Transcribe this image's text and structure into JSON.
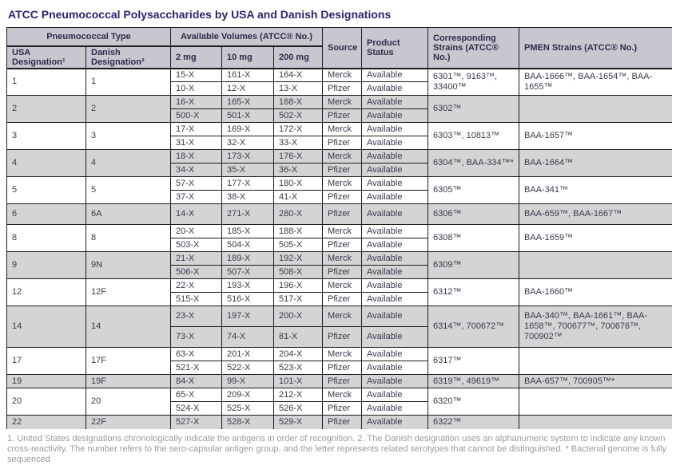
{
  "title": "ATCC Pneumococcal Polysaccharides by USA and Danish Designations",
  "table": {
    "header": {
      "pneumococcal_type": "Pneumococcal Type",
      "usa_designation": "USA Designation¹",
      "danish_designation": "Danish Designation²",
      "available_volumes": "Available Volumes (ATCC® No.)",
      "v2": "2 mg",
      "v10": "10 mg",
      "v200": "200 mg",
      "source": "Source",
      "product_status": "Product Status",
      "corresponding_strains": "Corresponding Strains (ATCC® No.)",
      "pmen_strains": "PMEN Strains (ATCC® No.)"
    },
    "groups": [
      {
        "usa": "1",
        "danish": "1",
        "rows": [
          {
            "v2": "15-X",
            "v10": "161-X",
            "v200": "164-X",
            "source": "Merck",
            "status": "Available"
          },
          {
            "v2": "10-X",
            "v10": "12-X",
            "v200": "13-X",
            "source": "Pfizer",
            "status": "Available"
          }
        ],
        "strains": "6301™, 9163™, 33400™",
        "pmen": "BAA-1666™, BAA-1654™, BAA-1655™"
      },
      {
        "usa": "2",
        "danish": "2",
        "rows": [
          {
            "v2": "16-X",
            "v10": "165-X",
            "v200": "168-X",
            "source": "Merck",
            "status": "Available"
          },
          {
            "v2": "500-X",
            "v10": "501-X",
            "v200": "502-X",
            "source": "Pfizer",
            "status": "Available"
          }
        ],
        "strains": "6302™",
        "pmen": ""
      },
      {
        "usa": "3",
        "danish": "3",
        "rows": [
          {
            "v2": "17-X",
            "v10": "169-X",
            "v200": "172-X",
            "source": "Merck",
            "status": "Available"
          },
          {
            "v2": "31-X",
            "v10": "32-X",
            "v200": "33-X",
            "source": "Pfizer",
            "status": "Available"
          }
        ],
        "strains": "6303™, 10813™",
        "pmen": "BAA-1657™"
      },
      {
        "usa": "4",
        "danish": "4",
        "rows": [
          {
            "v2": "18-X",
            "v10": "173-X",
            "v200": "176-X",
            "source": "Merck",
            "status": "Available"
          },
          {
            "v2": "34-X",
            "v10": "35-X",
            "v200": "36-X",
            "source": "Pfizer",
            "status": "Available"
          }
        ],
        "strains": "6304™, BAA-334™*",
        "pmen": "BAA-1664™"
      },
      {
        "usa": "5",
        "danish": "5",
        "rows": [
          {
            "v2": "57-X",
            "v10": "177-X",
            "v200": "180-X",
            "source": "Merck",
            "status": "Available"
          },
          {
            "v2": "37-X",
            "v10": "38-X",
            "v200": "41-X",
            "source": "Pfizer",
            "status": "Available"
          }
        ],
        "strains": "6305™",
        "pmen": "BAA-341™"
      },
      {
        "usa": "6",
        "danish": "6A",
        "tall": true,
        "rows": [
          {
            "v2": "14-X",
            "v10": "271-X",
            "v200": "280-X",
            "source": "Pfizer",
            "status": "Available"
          }
        ],
        "strains": "6306™",
        "pmen": "BAA-659™, BAA-1667™"
      },
      {
        "usa": "8",
        "danish": "8",
        "rows": [
          {
            "v2": "20-X",
            "v10": "185-X",
            "v200": "188-X",
            "source": "Merck",
            "status": "Available"
          },
          {
            "v2": "503-X",
            "v10": "504-X",
            "v200": "505-X",
            "source": "Pfizer",
            "status": "Available"
          }
        ],
        "strains": "6308™",
        "pmen": "BAA-1659™"
      },
      {
        "usa": "9",
        "danish": "9N",
        "rows": [
          {
            "v2": "21-X",
            "v10": "189-X",
            "v200": "192-X",
            "source": "Merck",
            "status": "Available"
          },
          {
            "v2": "506-X",
            "v10": "507-X",
            "v200": "508-X",
            "source": "Pfizer",
            "status": "Available"
          }
        ],
        "strains": "6309™",
        "pmen": ""
      },
      {
        "usa": "12",
        "danish": "12F",
        "rows": [
          {
            "v2": "22-X",
            "v10": "193-X",
            "v200": "196-X",
            "source": "Merck",
            "status": "Available"
          },
          {
            "v2": "515-X",
            "v10": "516-X",
            "v200": "517-X",
            "source": "Pfizer",
            "status": "Available"
          }
        ],
        "strains": "6312™",
        "pmen": "BAA-1660™"
      },
      {
        "usa": "14",
        "danish": "14",
        "tall": true,
        "rows": [
          {
            "v2": "23-X",
            "v10": "197-X",
            "v200": "200-X",
            "source": "Merck",
            "status": "Available"
          },
          {
            "v2": "73-X",
            "v10": "74-X",
            "v200": "81-X",
            "source": "Pfizer",
            "status": "Available"
          }
        ],
        "strains": "6314™, 700672™",
        "pmen": "BAA-340™, BAA-1661™, BAA-1658™, 700677™, 700676™, 700902™"
      },
      {
        "usa": "17",
        "danish": "17F",
        "rows": [
          {
            "v2": "63-X",
            "v10": "201-X",
            "v200": "204-X",
            "source": "Merck",
            "status": "Available"
          },
          {
            "v2": "521-X",
            "v10": "522-X",
            "v200": "523-X",
            "source": "Pfizer",
            "status": "Available"
          }
        ],
        "strains": "6317™",
        "pmen": ""
      },
      {
        "usa": "19",
        "danish": "19F",
        "rows": [
          {
            "v2": "84-X",
            "v10": "99-X",
            "v200": "101-X",
            "source": "Pfizer",
            "status": "Available"
          }
        ],
        "strains": "6319™, 49619™",
        "pmen": "BAA-657™, 700905™*"
      },
      {
        "usa": "20",
        "danish": "20",
        "rows": [
          {
            "v2": "65-X",
            "v10": "209-X",
            "v200": "212-X",
            "source": "Merck",
            "status": "Available"
          },
          {
            "v2": "524-X",
            "v10": "525-X",
            "v200": "526-X",
            "source": "Pfizer",
            "status": "Available"
          }
        ],
        "strains": "6320™",
        "pmen": ""
      },
      {
        "usa": "22",
        "danish": "22F",
        "rows": [
          {
            "v2": "527-X",
            "v10": "528-X",
            "v200": "529-X",
            "source": "Pfizer",
            "status": "Available"
          }
        ],
        "strains": "6322™",
        "pmen": ""
      }
    ]
  },
  "footnote": "1. United States designations chronologically indicate the antigens in order of recognition. 2. The Danish designation uses an alphanumeric system to indicate any known cross-reactivity. The number refers to the sero-capsular antigen group, and the letter represents related serotypes that cannot be distinguished. * Bacterial genome is fully sequenced",
  "colors": {
    "title": "#2a2470",
    "header_bg": "#c7c7cf",
    "stripe_bg": "#d4d4d4",
    "border": "#1c1c1c",
    "cell_text": "#3a3a4e",
    "footnote_text": "#9b9b9b"
  }
}
